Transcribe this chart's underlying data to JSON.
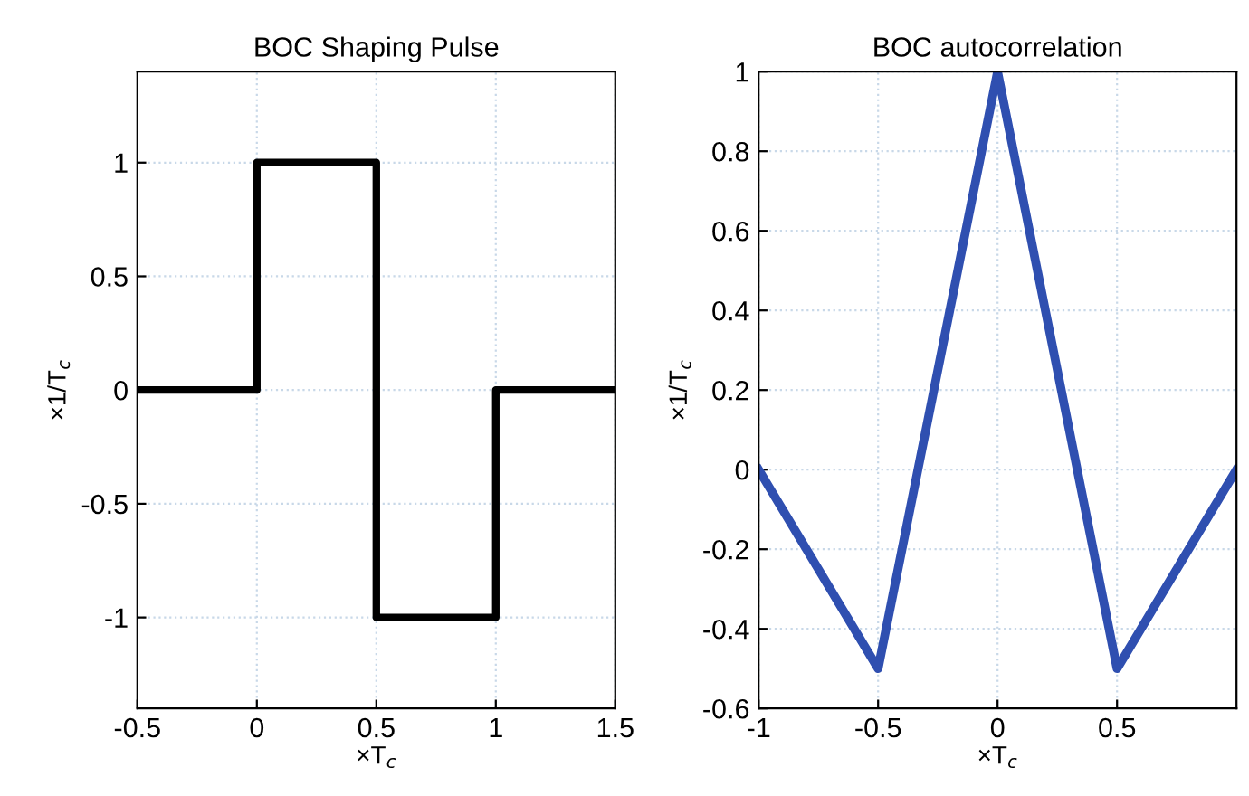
{
  "chart_data": [
    {
      "type": "step",
      "title": "BOC Shaping Pulse",
      "xlabel": "×T$_{c}$",
      "ylabel": "×1/T$_{c}$",
      "x": [
        -0.5,
        0,
        0.5,
        1,
        1.5
      ],
      "series": [
        {
          "color": "#000000",
          "values": [
            0,
            1,
            -1,
            0,
            0
          ]
        }
      ],
      "xlim": [
        -0.5,
        1.5
      ],
      "ylim": [
        -1.4,
        1.4
      ],
      "xticks": [
        -0.5,
        0,
        0.5,
        1,
        1.5
      ],
      "yticks": [
        -1,
        -0.5,
        0,
        0.5,
        1
      ],
      "grid": true,
      "line_style": "solid"
    },
    {
      "type": "line",
      "title": "BOC autocorrelation",
      "xlabel": "×T$_{c}$",
      "ylabel": "×1/T$_{c}$",
      "x": [
        -1,
        -0.5,
        0,
        0.5,
        1
      ],
      "series": [
        {
          "color": "#2f4fb0",
          "values": [
            0,
            -0.5,
            1,
            -0.5,
            0
          ]
        }
      ],
      "xlim": [
        -1,
        1
      ],
      "ylim": [
        -0.6,
        1
      ],
      "xticks": [
        -1,
        -0.5,
        0,
        0.5
      ],
      "yticks": [
        -0.6,
        -0.4,
        -0.2,
        0,
        0.2,
        0.4,
        0.6,
        0.8,
        1
      ],
      "grid": true,
      "line_style": "solid"
    }
  ]
}
